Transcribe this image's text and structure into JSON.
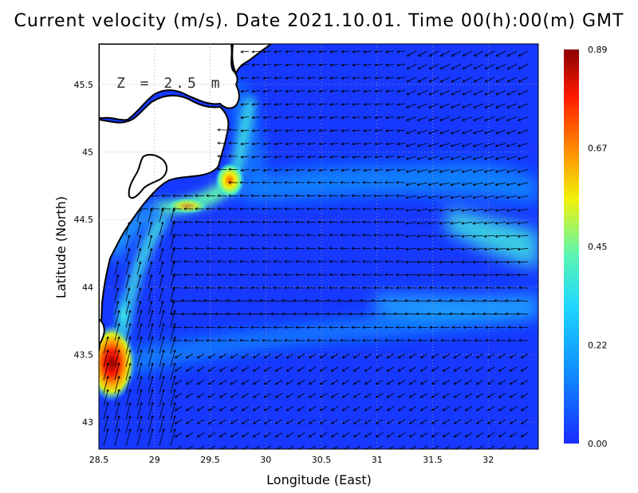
{
  "title": "Current velocity (m/s). Date 2021.10.01. Time 00(h):00(m) GMT",
  "depth_label": "Z = 2.5 m",
  "xlabel": "Longitude (East)",
  "ylabel": "Latitude (North)",
  "x_ticks": [
    "28.5",
    "29",
    "29.5",
    "30",
    "30.5",
    "31",
    "31.5",
    "32"
  ],
  "y_ticks": [
    "43",
    "43.5",
    "44",
    "44.5",
    "45",
    "45.5"
  ],
  "colorbar": {
    "ticks": [
      "0.00",
      "0.22",
      "0.45",
      "0.67",
      "0.89"
    ],
    "min": 0.0,
    "max": 0.89
  },
  "chart_data": {
    "type": "heatmap",
    "variable": "current velocity",
    "units": "m/s",
    "xlim": [
      28.5,
      32.45
    ],
    "ylim": [
      42.8,
      45.8
    ],
    "grid": true,
    "colormap_colors": [
      "#1a2cff",
      "#0f8cff",
      "#1fd8ff",
      "#5cf5b0",
      "#f2f20a",
      "#ff8000",
      "#ff1a00",
      "#8b0000"
    ]
  }
}
